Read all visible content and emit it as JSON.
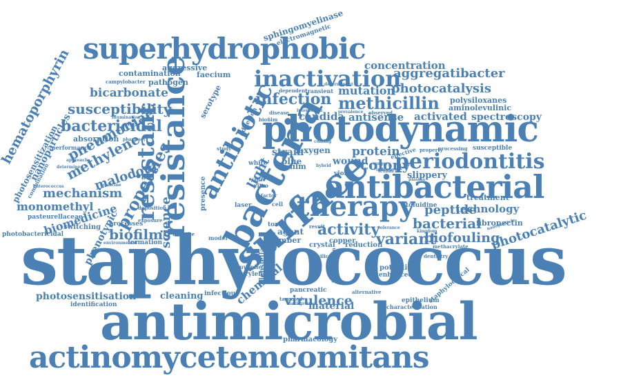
{
  "color": "#4a80b3",
  "words": {
    "staphylococcus": "staphylococcus",
    "antimicrobial": "antimicrobial",
    "actinomycetemcomitans": "actinomycetemcomitans",
    "superhydrophobic": "superhydrophobic",
    "photodynamic": "photodynamic",
    "antibacterial": "antibacterial",
    "therapy": "therapy",
    "surface": "surface",
    "bacteria": "bacteria",
    "resistance": "resistance",
    "antibiotic": "antibiotic",
    "inactivation": "inactivation",
    "periodontitis": "periodontitis",
    "infection": "infection",
    "methicillin": "methicillin",
    "susceptibility": "susceptibility",
    "bactericidal": "bactericidal",
    "bicarbonate": "bicarbonate",
    "photocatalysis": "photocatalysis",
    "mutation": "mutation",
    "concentration": "concentration",
    "aggregatibacter": "aggregatibacter",
    "resistant": "resistant",
    "properties": "properties",
    "methylene": "methylene",
    "pneumoniae": "pneumoniae",
    "mechanism": "mechanism",
    "malodour": "malodour",
    "hematoporphyrin": "hematoporphyrin",
    "nanoparticles": "nanoparticles",
    "photosensitization": "photosensitization",
    "spectroscopy": "spectroscopy",
    "activated": "activated",
    "candida": "candida",
    "antisense": "antisense",
    "wound": "wound",
    "protein": "protein",
    "colony": "colony",
    "peptide": "peptide",
    "technology": "technology",
    "bacterial": "bacterial",
    "activity": "activity",
    "variant": "variant",
    "biofouling": "biofouling",
    "photocatalytic": "photocatalytic",
    "biofilms": "biofilms",
    "science": "science",
    "monomethyl": "monomethyl",
    "biomedicine": "biomedicine",
    "phenotypic": "phenotypic",
    "photosensitisation": "photosensitisation",
    "virulence": "virulence",
    "chemical": "chemical",
    "cleaning": "cleaning",
    "pharmacology": "pharmacology",
    "material": "material",
    "sphingomyelinase": "sphingomyelinase",
    "electromagnetic": "electromagnetic",
    "aggressive": "aggressive",
    "faecium": "faecium",
    "pathogen": "pathogen",
    "contamination": "contamination",
    "serotype": "serotype",
    "polysiloxanes": "polysiloxanes",
    "aminolevulinic": "aminolevulinic",
    "slippery": "slippery",
    "treatment": "treatment",
    "susceptible": "susceptible",
    "fibronectin": "fibronectin",
    "toluidine": "toluidine",
    "absorption": "absorption",
    "pasteurellaceae": "pasteurellaceae",
    "switching": "switching",
    "photobactericidal": "photobactericidal",
    "processes": "processes",
    "formation": "formation",
    "identification": "identification",
    "infectious": "infectious",
    "pancreatic": "pancreatic",
    "klebsiella": "klebsiella",
    "human": "human",
    "light": "light",
    "staphylococcal": "staphylococcal",
    "epithelium": "epithelium",
    "characterisation": "characterisation",
    "potential": "potential",
    "enhanced": "enhanced",
    "parylene": "parylene",
    "juvenile": "juvenile",
    "number": "number",
    "agent": "agent",
    "crystal": "crystal",
    "copper": "copper",
    "reduction": "reduction",
    "toxin": "toxin",
    "laser": "laser",
    "strain": "strain",
    "oxygen": "oxygen",
    "blue": "blue",
    "film": "film",
    "white": "white",
    "presence": "presence",
    "adhesion": "adhesion",
    "illumination": "illumination",
    "campylobacter": "campylobacter",
    "performance": "performance",
    "determinant": "determinant",
    "transient": "transient",
    "dependent": "dependent",
    "disease": "disease",
    "biofilm": "biofilm",
    "observed": "observed",
    "property": "property",
    "processing": "processing",
    "violet": "violet",
    "dentistry": "dentistry",
    "methacrylate": "methacrylate",
    "alternative": "alternative",
    "transmission": "transmission",
    "targeted": "targeted",
    "background": "background",
    "microbe": "microbe",
    "exposure": "exposure",
    "environmental": "environmental",
    "combination": "combination",
    "determined": "determined",
    "approach": "approach",
    "coli": "coli",
    "vitro": "vitro",
    "cell": "cell",
    "result": "result",
    "kingdom": "kingdom",
    "nanoparticle": "nanoparticle",
    "study": "study",
    "hybrid": "hybrid",
    "deposition": "deposition",
    "pharmacy": "pharmacy",
    "medicine": "medicine",
    "enterococcus": "enterococcus",
    "lethal": "lethal",
    "surgery": "surgery",
    "effective": "effective",
    "prevalence": "prevalence",
    "interaction": "interaction",
    "coating": "coating",
    "model": "model",
    "factor": "factor",
    "silicone": "silicone",
    "tolerance": "tolerance",
    "plasma": "plasma",
    "influence": "influence"
  }
}
